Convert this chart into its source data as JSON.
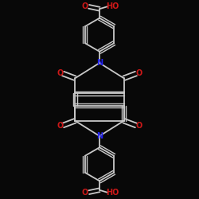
{
  "bg_color": "#080808",
  "bond_color": "#c8c8c8",
  "bond_width": 1.3,
  "N_color": "#2020ee",
  "O_color": "#cc1818",
  "label_fontsize": 7.0,
  "figsize": [
    2.5,
    2.5
  ],
  "dpi": 100,
  "xlim": [
    -1.3,
    1.3
  ],
  "ylim": [
    -1.3,
    1.3
  ]
}
